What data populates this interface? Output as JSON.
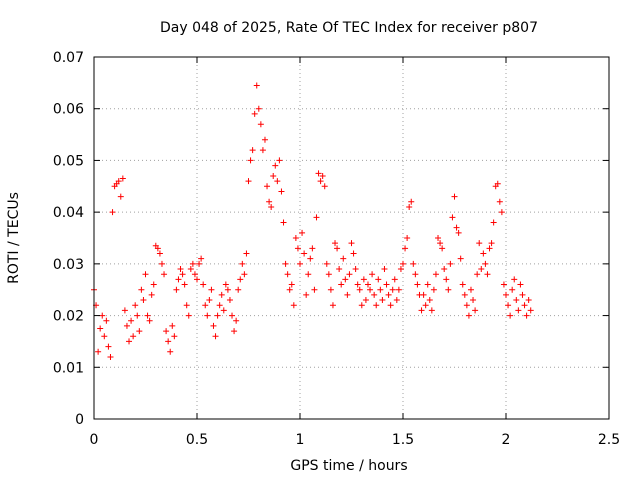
{
  "chart_data": {
    "type": "scatter",
    "title": "Day 048 of 2025, Rate Of TEC Index for receiver p807",
    "xlabel": "GPS time / hours",
    "ylabel": "ROTI / TECUs",
    "xlim": [
      0,
      2.5
    ],
    "ylim": [
      0,
      0.07
    ],
    "x_ticks": [
      0,
      0.5,
      1,
      1.5,
      2,
      2.5
    ],
    "x_tick_labels": [
      "0",
      "0.5",
      "1",
      "1.5",
      "2",
      "2.5"
    ],
    "y_ticks": [
      0,
      0.01,
      0.02,
      0.03,
      0.04,
      0.05,
      0.06,
      0.07
    ],
    "y_tick_labels": [
      "0",
      "0.01",
      "0.02",
      "0.03",
      "0.04",
      "0.05",
      "0.06",
      "0.07"
    ],
    "grid": true,
    "marker": "+",
    "color": "#ff0000",
    "series": [
      {
        "name": "ROTI",
        "points": [
          [
            0.0,
            0.025
          ],
          [
            0.01,
            0.022
          ],
          [
            0.02,
            0.013
          ],
          [
            0.03,
            0.0175
          ],
          [
            0.04,
            0.02
          ],
          [
            0.05,
            0.016
          ],
          [
            0.06,
            0.019
          ],
          [
            0.07,
            0.014
          ],
          [
            0.08,
            0.012
          ],
          [
            0.09,
            0.04
          ],
          [
            0.1,
            0.045
          ],
          [
            0.11,
            0.0455
          ],
          [
            0.12,
            0.046
          ],
          [
            0.13,
            0.043
          ],
          [
            0.14,
            0.0465
          ],
          [
            0.15,
            0.021
          ],
          [
            0.16,
            0.018
          ],
          [
            0.17,
            0.015
          ],
          [
            0.18,
            0.019
          ],
          [
            0.19,
            0.016
          ],
          [
            0.2,
            0.022
          ],
          [
            0.21,
            0.02
          ],
          [
            0.22,
            0.017
          ],
          [
            0.23,
            0.025
          ],
          [
            0.24,
            0.023
          ],
          [
            0.25,
            0.028
          ],
          [
            0.26,
            0.02
          ],
          [
            0.27,
            0.019
          ],
          [
            0.28,
            0.024
          ],
          [
            0.29,
            0.026
          ],
          [
            0.3,
            0.0335
          ],
          [
            0.31,
            0.033
          ],
          [
            0.32,
            0.032
          ],
          [
            0.33,
            0.03
          ],
          [
            0.34,
            0.028
          ],
          [
            0.35,
            0.017
          ],
          [
            0.36,
            0.015
          ],
          [
            0.37,
            0.013
          ],
          [
            0.38,
            0.018
          ],
          [
            0.39,
            0.016
          ],
          [
            0.4,
            0.025
          ],
          [
            0.41,
            0.027
          ],
          [
            0.42,
            0.029
          ],
          [
            0.43,
            0.028
          ],
          [
            0.44,
            0.026
          ],
          [
            0.45,
            0.022
          ],
          [
            0.46,
            0.02
          ],
          [
            0.47,
            0.029
          ],
          [
            0.48,
            0.03
          ],
          [
            0.49,
            0.028
          ],
          [
            0.5,
            0.027
          ],
          [
            0.51,
            0.03
          ],
          [
            0.52,
            0.031
          ],
          [
            0.53,
            0.026
          ],
          [
            0.54,
            0.022
          ],
          [
            0.55,
            0.02
          ],
          [
            0.56,
            0.023
          ],
          [
            0.57,
            0.025
          ],
          [
            0.58,
            0.018
          ],
          [
            0.59,
            0.016
          ],
          [
            0.6,
            0.02
          ],
          [
            0.61,
            0.022
          ],
          [
            0.62,
            0.024
          ],
          [
            0.63,
            0.021
          ],
          [
            0.64,
            0.026
          ],
          [
            0.65,
            0.025
          ],
          [
            0.66,
            0.023
          ],
          [
            0.67,
            0.02
          ],
          [
            0.68,
            0.017
          ],
          [
            0.69,
            0.019
          ],
          [
            0.7,
            0.025
          ],
          [
            0.71,
            0.027
          ],
          [
            0.72,
            0.03
          ],
          [
            0.73,
            0.028
          ],
          [
            0.74,
            0.032
          ],
          [
            0.75,
            0.046
          ],
          [
            0.76,
            0.05
          ],
          [
            0.77,
            0.052
          ],
          [
            0.78,
            0.059
          ],
          [
            0.79,
            0.0645
          ],
          [
            0.8,
            0.06
          ],
          [
            0.81,
            0.057
          ],
          [
            0.82,
            0.052
          ],
          [
            0.83,
            0.054
          ],
          [
            0.84,
            0.045
          ],
          [
            0.85,
            0.042
          ],
          [
            0.86,
            0.041
          ],
          [
            0.87,
            0.047
          ],
          [
            0.88,
            0.049
          ],
          [
            0.89,
            0.046
          ],
          [
            0.9,
            0.05
          ],
          [
            0.91,
            0.044
          ],
          [
            0.92,
            0.038
          ],
          [
            0.93,
            0.03
          ],
          [
            0.94,
            0.028
          ],
          [
            0.95,
            0.025
          ],
          [
            0.96,
            0.026
          ],
          [
            0.97,
            0.022
          ],
          [
            0.98,
            0.035
          ],
          [
            0.99,
            0.033
          ],
          [
            1.0,
            0.03
          ],
          [
            1.01,
            0.036
          ],
          [
            1.02,
            0.032
          ],
          [
            1.03,
            0.024
          ],
          [
            1.04,
            0.028
          ],
          [
            1.05,
            0.031
          ],
          [
            1.06,
            0.033
          ],
          [
            1.07,
            0.025
          ],
          [
            1.08,
            0.039
          ],
          [
            1.09,
            0.0475
          ],
          [
            1.1,
            0.046
          ],
          [
            1.11,
            0.047
          ],
          [
            1.12,
            0.045
          ],
          [
            1.13,
            0.03
          ],
          [
            1.14,
            0.028
          ],
          [
            1.15,
            0.025
          ],
          [
            1.16,
            0.022
          ],
          [
            1.17,
            0.034
          ],
          [
            1.18,
            0.033
          ],
          [
            1.19,
            0.029
          ],
          [
            1.2,
            0.026
          ],
          [
            1.21,
            0.031
          ],
          [
            1.22,
            0.027
          ],
          [
            1.23,
            0.024
          ],
          [
            1.24,
            0.028
          ],
          [
            1.25,
            0.034
          ],
          [
            1.26,
            0.032
          ],
          [
            1.27,
            0.029
          ],
          [
            1.28,
            0.026
          ],
          [
            1.29,
            0.025
          ],
          [
            1.3,
            0.022
          ],
          [
            1.31,
            0.027
          ],
          [
            1.32,
            0.023
          ],
          [
            1.33,
            0.026
          ],
          [
            1.34,
            0.025
          ],
          [
            1.35,
            0.028
          ],
          [
            1.36,
            0.024
          ],
          [
            1.37,
            0.022
          ],
          [
            1.38,
            0.027
          ],
          [
            1.39,
            0.025
          ],
          [
            1.4,
            0.023
          ],
          [
            1.41,
            0.029
          ],
          [
            1.42,
            0.026
          ],
          [
            1.43,
            0.024
          ],
          [
            1.44,
            0.022
          ],
          [
            1.45,
            0.025
          ],
          [
            1.46,
            0.027
          ],
          [
            1.47,
            0.023
          ],
          [
            1.48,
            0.025
          ],
          [
            1.49,
            0.029
          ],
          [
            1.5,
            0.03
          ],
          [
            1.51,
            0.033
          ],
          [
            1.52,
            0.035
          ],
          [
            1.53,
            0.041
          ],
          [
            1.54,
            0.042
          ],
          [
            1.55,
            0.03
          ],
          [
            1.56,
            0.028
          ],
          [
            1.57,
            0.026
          ],
          [
            1.58,
            0.024
          ],
          [
            1.59,
            0.021
          ],
          [
            1.6,
            0.024
          ],
          [
            1.61,
            0.022
          ],
          [
            1.62,
            0.026
          ],
          [
            1.63,
            0.023
          ],
          [
            1.64,
            0.021
          ],
          [
            1.65,
            0.025
          ],
          [
            1.66,
            0.028
          ],
          [
            1.67,
            0.035
          ],
          [
            1.68,
            0.034
          ],
          [
            1.69,
            0.033
          ],
          [
            1.7,
            0.029
          ],
          [
            1.71,
            0.027
          ],
          [
            1.72,
            0.025
          ],
          [
            1.73,
            0.03
          ],
          [
            1.74,
            0.039
          ],
          [
            1.75,
            0.043
          ],
          [
            1.76,
            0.037
          ],
          [
            1.77,
            0.036
          ],
          [
            1.78,
            0.031
          ],
          [
            1.79,
            0.026
          ],
          [
            1.8,
            0.024
          ],
          [
            1.81,
            0.022
          ],
          [
            1.82,
            0.02
          ],
          [
            1.83,
            0.025
          ],
          [
            1.84,
            0.023
          ],
          [
            1.85,
            0.021
          ],
          [
            1.86,
            0.028
          ],
          [
            1.87,
            0.034
          ],
          [
            1.88,
            0.029
          ],
          [
            1.89,
            0.032
          ],
          [
            1.9,
            0.03
          ],
          [
            1.91,
            0.028
          ],
          [
            1.92,
            0.033
          ],
          [
            1.93,
            0.034
          ],
          [
            1.94,
            0.038
          ],
          [
            1.95,
            0.045
          ],
          [
            1.96,
            0.0455
          ],
          [
            1.97,
            0.042
          ],
          [
            1.98,
            0.04
          ],
          [
            1.99,
            0.026
          ],
          [
            2.0,
            0.024
          ],
          [
            2.01,
            0.022
          ],
          [
            2.02,
            0.02
          ],
          [
            2.03,
            0.025
          ],
          [
            2.04,
            0.027
          ],
          [
            2.05,
            0.023
          ],
          [
            2.06,
            0.021
          ],
          [
            2.07,
            0.026
          ],
          [
            2.08,
            0.024
          ],
          [
            2.09,
            0.022
          ],
          [
            2.1,
            0.02
          ],
          [
            2.11,
            0.023
          ],
          [
            2.12,
            0.021
          ]
        ]
      }
    ]
  }
}
